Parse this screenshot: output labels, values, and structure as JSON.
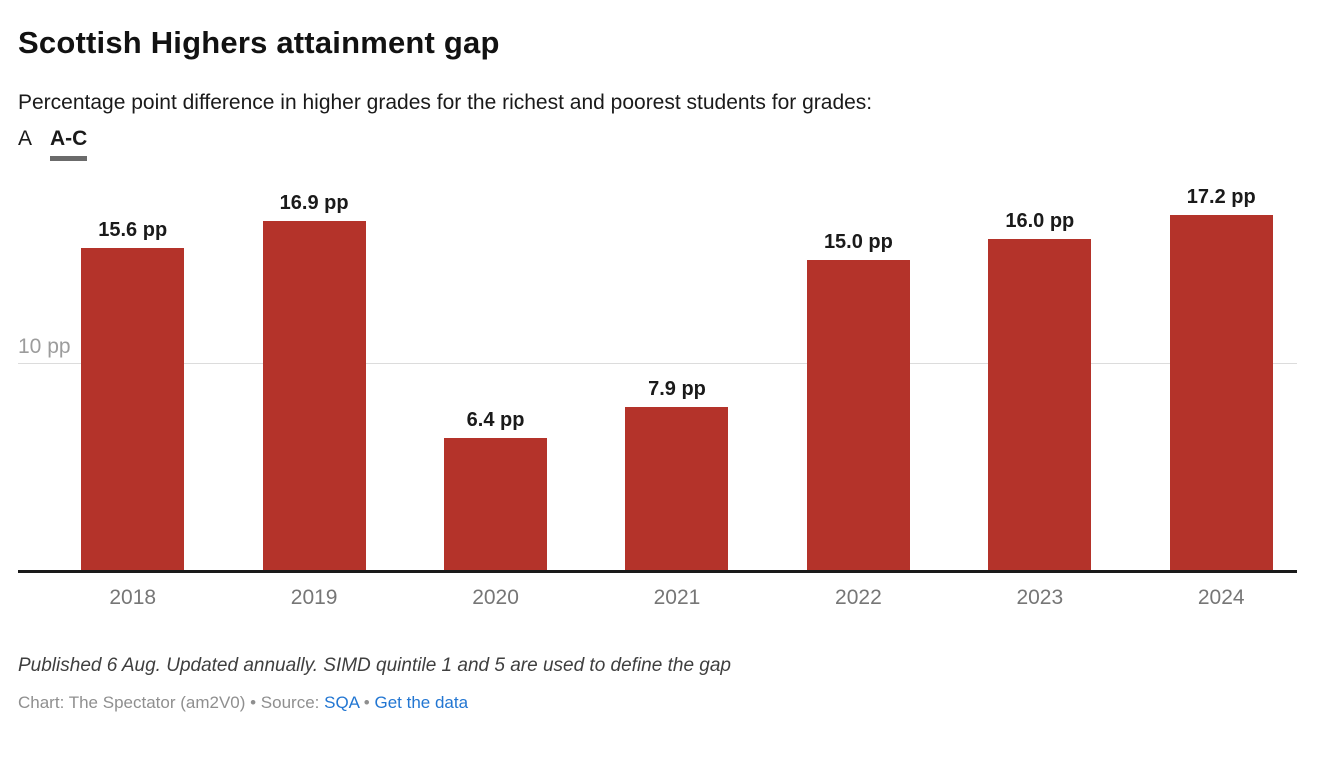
{
  "header": {
    "title": "Scottish Highers attainment gap",
    "subtitle": "Percentage point difference in higher grades for the richest and poorest students for grades:",
    "tabs": [
      {
        "label": "A",
        "active": false
      },
      {
        "label": "A-C",
        "active": true
      }
    ]
  },
  "chart_data": {
    "type": "bar",
    "title": "Scottish Highers attainment gap",
    "categories": [
      "2018",
      "2019",
      "2020",
      "2021",
      "2022",
      "2023",
      "2024"
    ],
    "values": [
      15.6,
      16.9,
      6.4,
      7.9,
      15.0,
      16.0,
      17.2
    ],
    "value_labels": [
      "15.6 pp",
      "16.9 pp",
      "6.4 pp",
      "7.9 pp",
      "15.0 pp",
      "16.0 pp",
      "17.2 pp"
    ],
    "unit": "pp",
    "xlabel": "",
    "ylabel": "",
    "ylim": [
      0,
      19.57
    ],
    "gridline": {
      "value": 10,
      "label": "10 pp"
    },
    "grid": "single horizontal line at 10 pp",
    "legend_position": "none",
    "bar_color": "#b4332a"
  },
  "footer": {
    "notes": "Published 6 Aug. Updated annually. SIMD quintile 1 and 5 are used to define the gap",
    "credit_prefix": "Chart: The Spectator (am2V0) • Source: ",
    "source_link": "SQA",
    "separator": " • ",
    "data_link": "Get the data"
  }
}
